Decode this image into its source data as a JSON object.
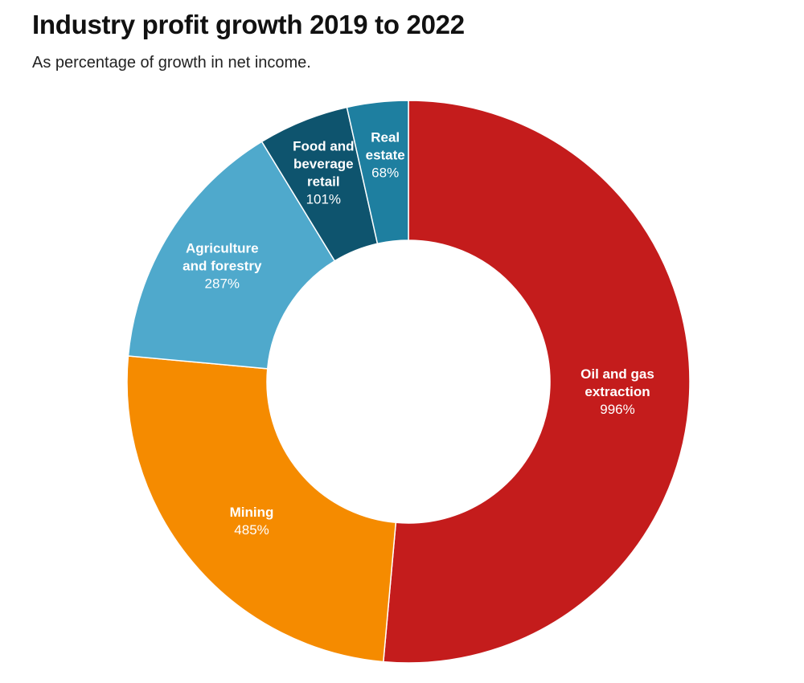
{
  "title": "Industry profit growth 2019 to 2022",
  "subtitle": "As percentage of growth in net income.",
  "chart_data": {
    "type": "pie",
    "donut": true,
    "slices": [
      {
        "name": "Oil and gas extraction",
        "label_lines": [
          "Oil and gas",
          "extraction"
        ],
        "value": 996,
        "value_label": "996%",
        "color": "#c41c1c"
      },
      {
        "name": "Mining",
        "label_lines": [
          "Mining"
        ],
        "value": 485,
        "value_label": "485%",
        "color": "#f58b00"
      },
      {
        "name": "Agriculture and forestry",
        "label_lines": [
          "Agriculture",
          "and forestry"
        ],
        "value": 287,
        "value_label": "287%",
        "color": "#4fa9cc"
      },
      {
        "name": "Food and beverage retail",
        "label_lines": [
          "Food and",
          "beverage",
          "retail"
        ],
        "value": 101,
        "value_label": "101%",
        "color": "#0e546e"
      },
      {
        "name": "Real estate",
        "label_lines": [
          "Real",
          "estate"
        ],
        "value": 68,
        "value_label": "68%",
        "color": "#1e7fa0"
      }
    ]
  }
}
